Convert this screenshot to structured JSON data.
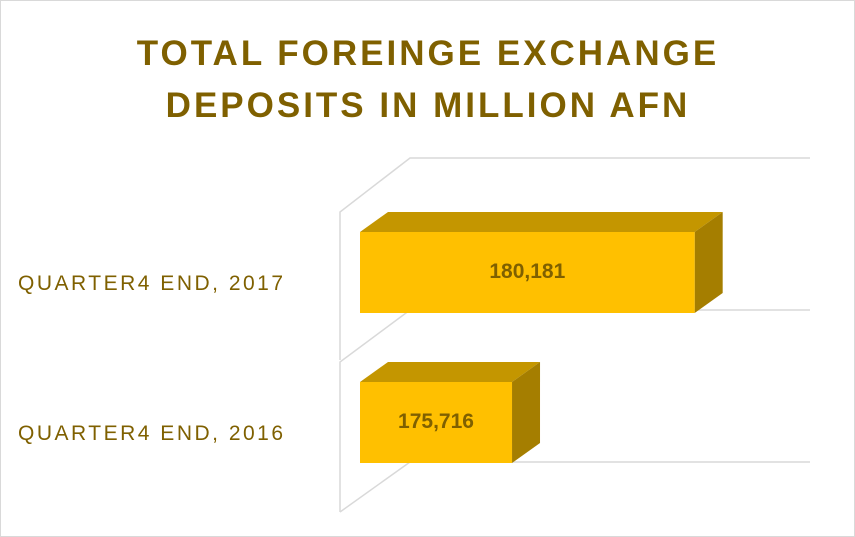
{
  "chart_data": {
    "type": "bar3d_horizontal",
    "title": "TOTAL FOREINGE EXCHANGE DEPOSITS IN MILLION AFN",
    "categories": [
      "QUARTER4 END, 2017",
      "QUARTER4 END, 2016"
    ],
    "values": [
      180181,
      175716
    ],
    "value_labels": [
      "180,181",
      "175,716"
    ],
    "color": "#ffc000",
    "xlim": [
      172000,
      183000
    ]
  }
}
